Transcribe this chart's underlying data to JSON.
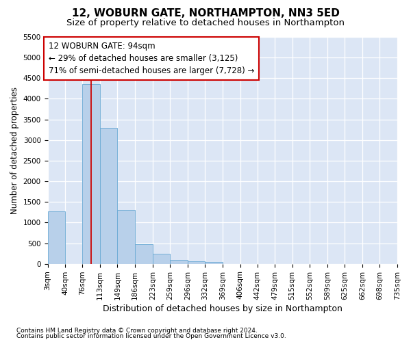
{
  "title1": "12, WOBURN GATE, NORTHAMPTON, NN3 5ED",
  "title2": "Size of property relative to detached houses in Northampton",
  "xlabel": "Distribution of detached houses by size in Northampton",
  "ylabel": "Number of detached properties",
  "footer1": "Contains HM Land Registry data © Crown copyright and database right 2024.",
  "footer2": "Contains public sector information licensed under the Open Government Licence v3.0.",
  "annotation_line1": "12 WOBURN GATE: 94sqm",
  "annotation_line2": "← 29% of detached houses are smaller (3,125)",
  "annotation_line3": "71% of semi-detached houses are larger (7,728) →",
  "property_size": 94,
  "bin_edges": [
    3,
    40,
    76,
    113,
    149,
    186,
    223,
    259,
    296,
    332,
    369,
    406,
    442,
    479,
    515,
    552,
    589,
    625,
    662,
    698,
    735
  ],
  "bin_counts": [
    1275,
    0,
    4350,
    3300,
    1300,
    475,
    240,
    100,
    65,
    50,
    0,
    0,
    0,
    0,
    0,
    0,
    0,
    0,
    0,
    0
  ],
  "bar_color": "#b8d0ea",
  "bar_edge_color": "#6aaad4",
  "line_color": "#cc0000",
  "background_color": "#dce6f5",
  "annotation_box_color": "#ffffff",
  "annotation_box_edge": "#cc0000",
  "ylim": [
    0,
    5500
  ],
  "yticks": [
    0,
    500,
    1000,
    1500,
    2000,
    2500,
    3000,
    3500,
    4000,
    4500,
    5000,
    5500
  ],
  "title1_fontsize": 11,
  "title2_fontsize": 9.5,
  "xlabel_fontsize": 9,
  "ylabel_fontsize": 8.5,
  "tick_fontsize": 7.5,
  "annotation_fontsize": 8.5,
  "footer_fontsize": 6.5
}
